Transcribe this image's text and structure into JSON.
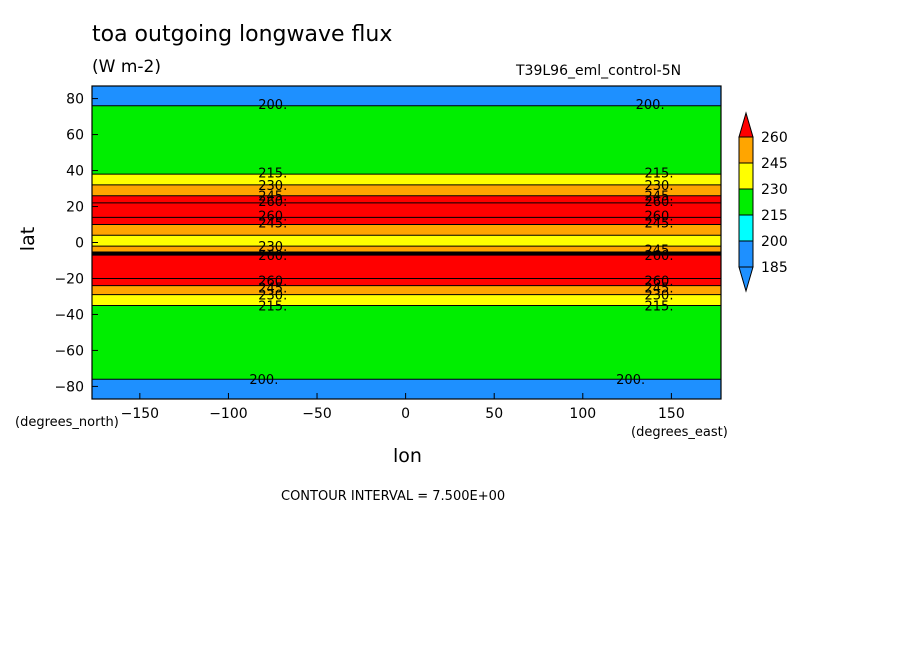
{
  "header": {
    "title": "toa outgoing longwave flux",
    "units": "(W m-2)",
    "run_name": "T39L96_eml_control-5N"
  },
  "axes": {
    "xlabel": "lon",
    "ylabel": "lat",
    "x_units": "(degrees_east)",
    "y_units": "(degrees_north)"
  },
  "footer": {
    "contour_interval": "CONTOUR INTERVAL = 7.500E+00"
  },
  "chart_data": {
    "type": "heatmap",
    "title": "toa outgoing longwave flux",
    "xlabel": "lon",
    "ylabel": "lat",
    "xlim": [
      -177,
      178
    ],
    "ylim": [
      -87,
      87
    ],
    "x_ticks": [
      -150,
      -100,
      -50,
      0,
      50,
      100,
      150
    ],
    "y_ticks": [
      80,
      60,
      40,
      20,
      0,
      -20,
      -40,
      -60,
      -80
    ],
    "colorbar": {
      "levels": [
        185,
        200,
        215,
        230,
        245,
        260
      ],
      "colors": [
        "#1e90ff",
        "#00ffff",
        "#00ee00",
        "#ffff00",
        "#ffa500",
        "#ff0000"
      ]
    },
    "zonal_bands": [
      {
        "lat_range": [
          76,
          87
        ],
        "value_range": "<200"
      },
      {
        "lat_range": [
          38,
          76
        ],
        "value_range": "200-215"
      },
      {
        "lat_range": [
          32,
          38
        ],
        "value_range": "215-230"
      },
      {
        "lat_range": [
          26,
          32
        ],
        "value_range": "230-245"
      },
      {
        "lat_range": [
          22,
          26
        ],
        "value_range": "245-260"
      },
      {
        "lat_range": [
          14,
          22
        ],
        "value_range": ">260"
      },
      {
        "lat_range": [
          10,
          14
        ],
        "value_range": "245-260"
      },
      {
        "lat_range": [
          4,
          10
        ],
        "value_range": "230-245"
      },
      {
        "lat_range": [
          -2,
          4
        ],
        "value_range": "215-230"
      },
      {
        "lat_range": [
          -5,
          -2
        ],
        "value_range": "230-245"
      },
      {
        "lat_range": [
          -20,
          -7
        ],
        "value_range": ">260"
      },
      {
        "lat_range": [
          -24,
          -20
        ],
        "value_range": "245-260"
      },
      {
        "lat_range": [
          -29,
          -24
        ],
        "value_range": "230-245"
      },
      {
        "lat_range": [
          -35,
          -29
        ],
        "value_range": "215-230"
      },
      {
        "lat_range": [
          -76,
          -35
        ],
        "value_range": "200-215"
      },
      {
        "lat_range": [
          -87,
          -76
        ],
        "value_range": "<200"
      }
    ],
    "contour_labels": [
      {
        "lon": -75,
        "lat": 77,
        "text": "200."
      },
      {
        "lon": 138,
        "lat": 77,
        "text": "200."
      },
      {
        "lon": -75,
        "lat": 39,
        "text": "215."
      },
      {
        "lon": 143,
        "lat": 39,
        "text": "215."
      },
      {
        "lon": -75,
        "lat": 32,
        "text": "230."
      },
      {
        "lon": 143,
        "lat": 32,
        "text": "230."
      },
      {
        "lon": -75,
        "lat": 26,
        "text": "245."
      },
      {
        "lon": 143,
        "lat": 26,
        "text": "245."
      },
      {
        "lon": -75,
        "lat": 23,
        "text": "260."
      },
      {
        "lon": 143,
        "lat": 23,
        "text": "260."
      },
      {
        "lon": -75,
        "lat": 15,
        "text": "260."
      },
      {
        "lon": 143,
        "lat": 15,
        "text": "260."
      },
      {
        "lon": -75,
        "lat": 11,
        "text": "245."
      },
      {
        "lon": 143,
        "lat": 11,
        "text": "245."
      },
      {
        "lon": -75,
        "lat": -2,
        "text": "230."
      },
      {
        "lon": 143,
        "lat": -4,
        "text": "245."
      },
      {
        "lon": -75,
        "lat": -7,
        "text": "260."
      },
      {
        "lon": 143,
        "lat": -7,
        "text": "260."
      },
      {
        "lon": -75,
        "lat": -21,
        "text": "260."
      },
      {
        "lon": 143,
        "lat": -21,
        "text": "260."
      },
      {
        "lon": -75,
        "lat": -25,
        "text": "245."
      },
      {
        "lon": 143,
        "lat": -25,
        "text": "245."
      },
      {
        "lon": -75,
        "lat": -29,
        "text": "230."
      },
      {
        "lon": 143,
        "lat": -29,
        "text": "230."
      },
      {
        "lon": -75,
        "lat": -35,
        "text": "215."
      },
      {
        "lon": 143,
        "lat": -35,
        "text": "215."
      },
      {
        "lon": -80,
        "lat": -76,
        "text": "200."
      },
      {
        "lon": 127,
        "lat": -76,
        "text": "200."
      }
    ]
  }
}
